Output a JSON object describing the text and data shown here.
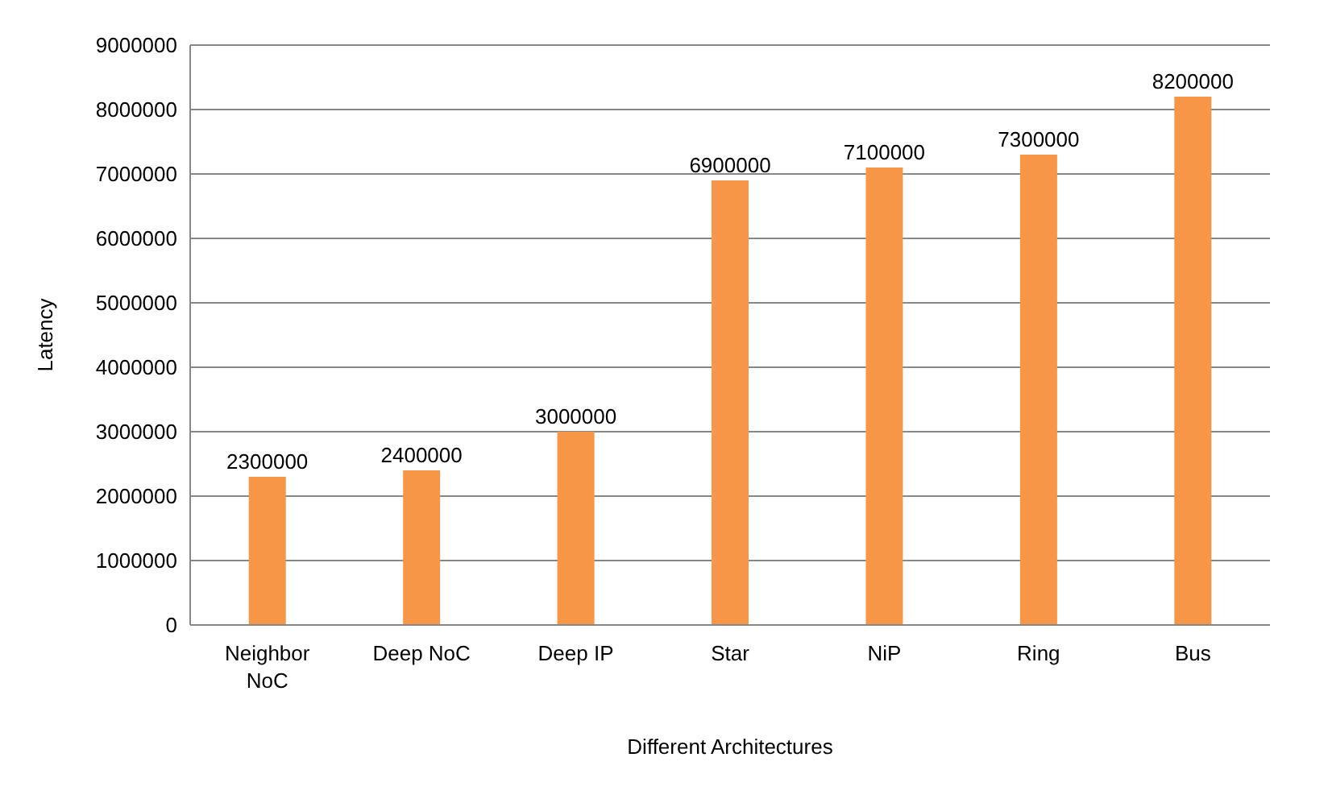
{
  "chart_data": {
    "type": "bar",
    "xlabel": "Different Architectures",
    "ylabel": "Latency",
    "categories": [
      "Neighbor NoC",
      "Deep NoC",
      "Deep IP",
      "Star",
      "NiP",
      "Ring",
      "Bus"
    ],
    "values": [
      2300000,
      2400000,
      3000000,
      6900000,
      7100000,
      7300000,
      8200000
    ],
    "color": "#f79646",
    "ylim": [
      0,
      9000000
    ],
    "yticks": [
      0,
      1000000,
      2000000,
      3000000,
      4000000,
      5000000,
      6000000,
      7000000,
      8000000,
      9000000
    ],
    "grid": "y",
    "data_labels": true
  }
}
